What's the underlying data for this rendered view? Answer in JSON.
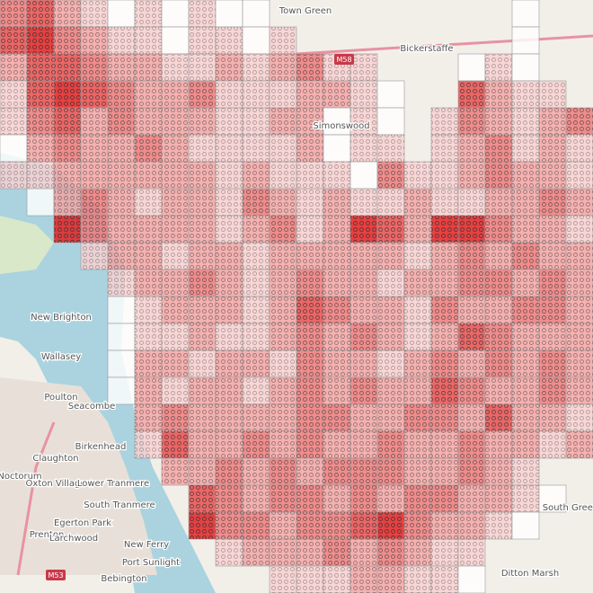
{
  "map": {
    "labels": [
      "Town Green",
      "Bickerstaffe",
      "M58",
      "Simonswood",
      "New Brighton",
      "Wallasey",
      "Poulton",
      "Seacombe",
      "Birkenhead",
      "Claughton",
      "Noctorum",
      "Oxton Village",
      "Lower Tranmere",
      "South Tranmere",
      "Egerton Park",
      "Prenton",
      "Larchwood",
      "New Ferry",
      "Port Sunlight",
      "Bebington",
      "M53",
      "Ditton Marsh",
      "South Green"
    ],
    "heatmap": {
      "rows": [
        [
          3,
          4,
          2,
          1,
          0,
          1,
          0,
          1,
          0,
          0,
          null,
          null,
          null,
          null,
          null,
          null,
          null,
          null,
          null,
          0,
          null,
          null
        ],
        [
          4,
          5,
          3,
          2,
          1,
          1,
          0,
          1,
          1,
          0,
          1,
          null,
          null,
          null,
          null,
          null,
          null,
          null,
          null,
          0,
          null,
          null
        ],
        [
          2,
          4,
          4,
          3,
          2,
          2,
          1,
          1,
          2,
          1,
          2,
          3,
          1,
          1,
          null,
          null,
          null,
          0,
          1,
          0,
          null,
          null
        ],
        [
          1,
          4,
          5,
          4,
          3,
          2,
          2,
          3,
          1,
          1,
          1,
          2,
          2,
          1,
          0,
          null,
          null,
          4,
          2,
          1,
          1,
          null
        ],
        [
          1,
          3,
          4,
          2,
          3,
          2,
          2,
          2,
          1,
          1,
          2,
          2,
          0,
          1,
          0,
          null,
          1,
          3,
          2,
          1,
          2,
          3
        ],
        [
          0,
          2,
          3,
          2,
          2,
          3,
          2,
          1,
          1,
          1,
          1,
          2,
          0,
          1,
          1,
          null,
          1,
          2,
          3,
          1,
          2,
          1
        ],
        [
          1,
          1,
          2,
          2,
          2,
          2,
          2,
          2,
          1,
          2,
          1,
          1,
          1,
          0,
          3,
          1,
          1,
          2,
          3,
          2,
          2,
          1
        ],
        [
          null,
          0,
          2,
          3,
          2,
          1,
          2,
          2,
          1,
          3,
          2,
          1,
          2,
          1,
          1,
          2,
          1,
          1,
          2,
          2,
          3,
          2
        ],
        [
          null,
          null,
          5,
          3,
          2,
          2,
          2,
          2,
          1,
          2,
          3,
          1,
          2,
          5,
          4,
          2,
          5,
          5,
          3,
          2,
          2,
          1
        ],
        [
          null,
          null,
          null,
          1,
          2,
          2,
          1,
          2,
          2,
          1,
          2,
          2,
          2,
          2,
          2,
          1,
          2,
          3,
          2,
          3,
          2,
          2
        ],
        [
          null,
          null,
          null,
          null,
          1,
          2,
          2,
          3,
          2,
          1,
          2,
          3,
          2,
          2,
          1,
          2,
          2,
          3,
          3,
          2,
          3,
          2
        ],
        [
          null,
          null,
          null,
          null,
          0,
          1,
          2,
          2,
          2,
          1,
          2,
          4,
          3,
          2,
          2,
          1,
          3,
          2,
          2,
          3,
          3,
          2
        ],
        [
          null,
          null,
          null,
          null,
          0,
          1,
          1,
          2,
          1,
          1,
          2,
          3,
          2,
          3,
          2,
          1,
          2,
          4,
          3,
          2,
          2,
          2
        ],
        [
          null,
          null,
          null,
          null,
          0,
          2,
          2,
          1,
          2,
          2,
          1,
          3,
          2,
          2,
          1,
          2,
          3,
          2,
          3,
          2,
          3,
          2
        ],
        [
          null,
          null,
          null,
          null,
          0,
          2,
          1,
          2,
          2,
          1,
          2,
          3,
          2,
          3,
          2,
          2,
          4,
          3,
          2,
          2,
          3,
          2
        ],
        [
          null,
          null,
          null,
          null,
          null,
          2,
          3,
          2,
          2,
          2,
          2,
          3,
          3,
          2,
          2,
          3,
          3,
          2,
          4,
          2,
          2,
          1
        ],
        [
          null,
          null,
          null,
          null,
          null,
          1,
          4,
          2,
          2,
          3,
          2,
          3,
          2,
          2,
          3,
          2,
          2,
          3,
          2,
          2,
          1,
          2
        ],
        [
          null,
          null,
          null,
          null,
          null,
          null,
          2,
          2,
          3,
          2,
          3,
          2,
          3,
          3,
          3,
          2,
          2,
          3,
          2,
          1,
          null,
          null
        ],
        [
          null,
          null,
          null,
          null,
          null,
          null,
          null,
          4,
          3,
          2,
          3,
          3,
          2,
          3,
          2,
          3,
          3,
          2,
          2,
          1,
          0,
          null
        ],
        [
          null,
          null,
          null,
          null,
          null,
          null,
          null,
          5,
          3,
          3,
          2,
          3,
          3,
          4,
          5,
          3,
          2,
          2,
          1,
          0,
          null,
          null
        ],
        [
          null,
          null,
          null,
          null,
          null,
          null,
          null,
          null,
          1,
          2,
          2,
          2,
          3,
          2,
          3,
          2,
          1,
          1,
          null,
          null,
          null,
          null
        ],
        [
          null,
          null,
          null,
          null,
          null,
          null,
          null,
          null,
          null,
          null,
          1,
          1,
          1,
          2,
          2,
          1,
          1,
          0,
          null,
          null,
          null,
          null
        ]
      ]
    }
  }
}
